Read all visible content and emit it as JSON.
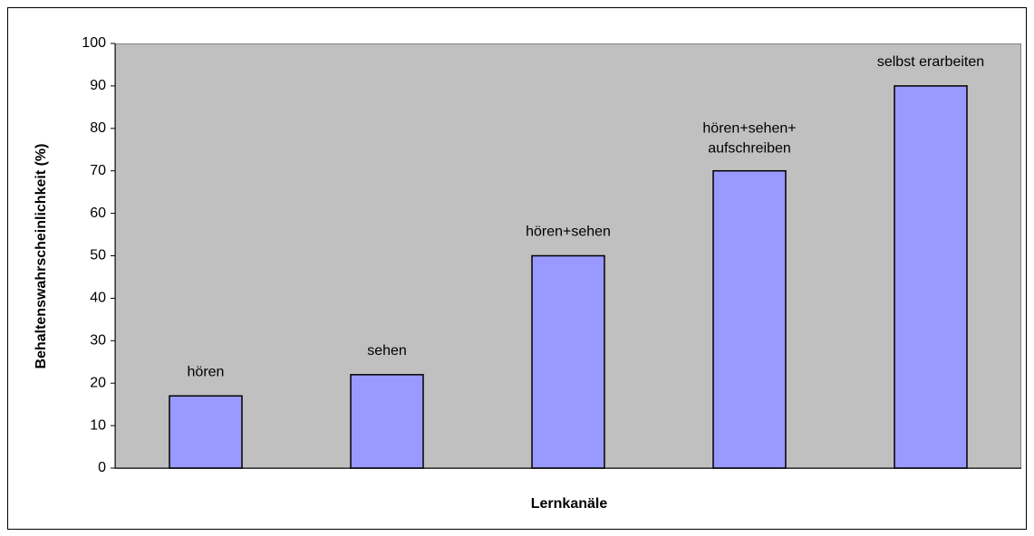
{
  "chart_data": {
    "type": "bar",
    "x_label": "Lernkanäle",
    "y_label": "Behaltenswahrscheinlichkeit (%)",
    "categories": [
      "hören",
      "sehen",
      "hören+sehen",
      "hören+sehen+\naufschreiben",
      "selbst erarbeiten"
    ],
    "values": [
      17,
      22,
      50,
      70,
      90
    ],
    "color": "#9999ff",
    "ylim": [
      0,
      100
    ],
    "yticks": [
      0,
      10,
      20,
      30,
      40,
      50,
      60,
      70,
      80,
      90,
      100
    ],
    "grid": false
  }
}
